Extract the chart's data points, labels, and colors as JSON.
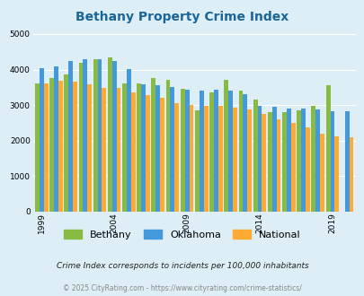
{
  "title": "Bethany Property Crime Index",
  "title_color": "#1a6699",
  "fig_bg_color": "#ddeef6",
  "plot_bg_color": "#ddeef6",
  "bar_colors": {
    "Bethany": "#88bb44",
    "Oklahoma": "#4499dd",
    "National": "#ffaa33"
  },
  "years": [
    1999,
    2000,
    2001,
    2002,
    2003,
    2004,
    2005,
    2006,
    2007,
    2008,
    2009,
    2010,
    2011,
    2012,
    2013,
    2014,
    2015,
    2016,
    2017,
    2018,
    2019,
    2020
  ],
  "bethany": [
    3600,
    3750,
    3850,
    4200,
    4300,
    4350,
    3600,
    3600,
    3750,
    3700,
    3450,
    2850,
    3350,
    3700,
    3400,
    3150,
    2800,
    2800,
    2850,
    2980,
    3550,
    0
  ],
  "oklahoma": [
    4050,
    4080,
    4250,
    4300,
    4300,
    4250,
    4020,
    3590,
    3560,
    3500,
    3440,
    3410,
    3430,
    3420,
    3310,
    2980,
    2950,
    2900,
    2900,
    2880,
    2820,
    2820
  ],
  "national": [
    3620,
    3680,
    3650,
    3590,
    3490,
    3480,
    3350,
    3270,
    3200,
    3050,
    3010,
    2970,
    2980,
    2940,
    2890,
    2750,
    2600,
    2490,
    2360,
    2200,
    2130,
    2100
  ],
  "ylim": [
    0,
    5000
  ],
  "yticks": [
    0,
    1000,
    2000,
    3000,
    4000,
    5000
  ],
  "xlabel_years": [
    1999,
    2004,
    2009,
    2014,
    2019
  ],
  "footnote1": "Crime Index corresponds to incidents per 100,000 inhabitants",
  "footnote2": "© 2025 CityRating.com - https://www.cityrating.com/crime-statistics/"
}
